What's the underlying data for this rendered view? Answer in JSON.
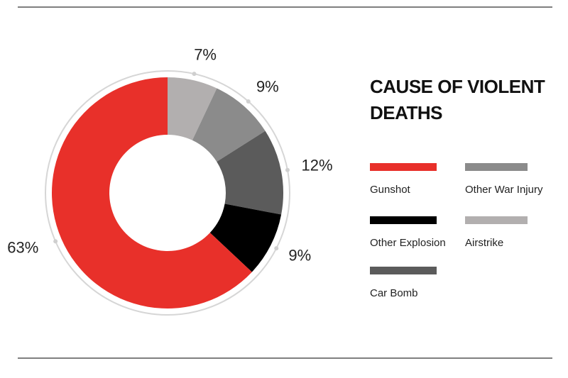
{
  "chart_data": {
    "type": "donut",
    "title": "CAUSE OF VIOLENT DEATHS",
    "categories": [
      "Airstrike",
      "Other War Injury",
      "Car Bomb",
      "Other Explosion",
      "Gunshot"
    ],
    "values": [
      7,
      9,
      12,
      9,
      63
    ],
    "value_labels": [
      "7%",
      "9%",
      "12%",
      "9%",
      "63%"
    ],
    "colors": [
      "#b2afaf",
      "#8b8b8b",
      "#5b5b5b",
      "#000000",
      "#e8302a"
    ]
  }
}
